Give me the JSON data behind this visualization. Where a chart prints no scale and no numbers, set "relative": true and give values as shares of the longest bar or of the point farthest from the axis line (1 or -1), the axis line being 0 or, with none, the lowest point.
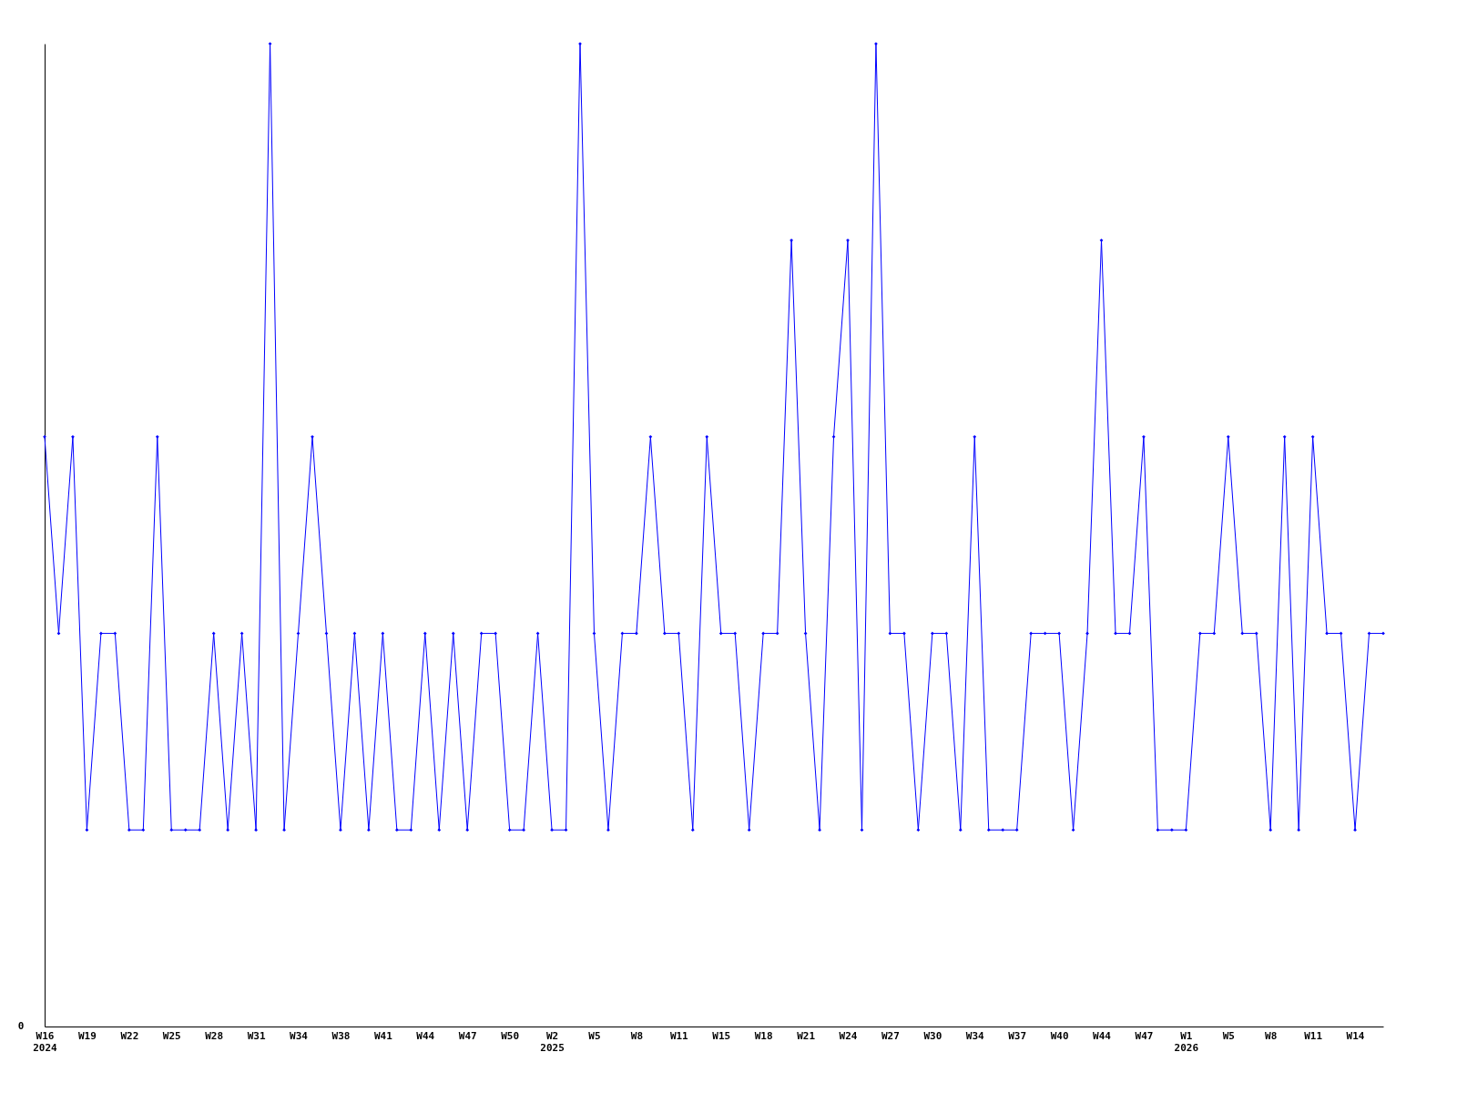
{
  "chart_data": {
    "type": "line",
    "relative": true,
    "marker": "diamond",
    "line_style": "solid",
    "annotations": [
      "0"
    ],
    "categories": [
      "W16\n2024",
      null,
      null,
      "W19",
      null,
      null,
      "W22",
      null,
      null,
      "W25",
      null,
      null,
      "W28",
      null,
      null,
      "W31",
      null,
      null,
      "W34",
      null,
      null,
      "W38",
      null,
      null,
      "W41",
      null,
      null,
      "W44",
      null,
      null,
      "W47",
      null,
      null,
      "W50",
      null,
      null,
      "W2\n2025",
      null,
      null,
      "W5",
      null,
      null,
      "W8",
      null,
      null,
      "W11",
      null,
      null,
      "W15",
      null,
      null,
      "W18",
      null,
      null,
      "W21",
      null,
      null,
      "W24",
      null,
      null,
      "W27",
      null,
      null,
      "W30",
      null,
      null,
      "W34",
      null,
      null,
      "W37",
      null,
      null,
      "W40",
      null,
      null,
      "W44",
      null,
      null,
      "W47",
      null,
      null,
      "W1\n2026",
      null,
      null,
      "W5",
      null,
      null,
      "W8",
      null,
      null,
      "W11",
      null,
      null,
      "W14",
      null,
      null
    ],
    "series": [
      {
        "color": "#0000ff",
        "values": [
          0.6,
          0.4,
          0.6,
          0.2,
          0.4,
          0.4,
          0.2,
          0.2,
          0.6,
          0.2,
          0.2,
          0.2,
          0.4,
          0.2,
          0.4,
          0.2,
          1,
          0.2,
          0.4,
          0.6,
          0.4,
          0.2,
          0.4,
          0.2,
          0.4,
          0.2,
          0.2,
          0.4,
          0.2,
          0.4,
          0.2,
          0.4,
          0.4,
          0.2,
          0.2,
          0.4,
          0.2,
          0.2,
          1,
          0.4,
          0.2,
          0.4,
          0.4,
          0.6,
          0.4,
          0.4,
          0.2,
          0.6,
          0.4,
          0.4,
          0.2,
          0.4,
          0.4,
          0.8,
          0.4,
          0.2,
          0.6,
          0.8,
          0.2,
          1,
          0.4,
          0.4,
          0.2,
          0.4,
          0.4,
          0.2,
          0.6,
          0.2,
          0.2,
          0.2,
          0.4,
          0.4,
          0.4,
          0.2,
          0.4,
          0.8,
          0.4,
          0.4,
          0.6,
          0.2,
          0.2,
          0.2,
          0.4,
          0.4,
          0.6,
          0.4,
          0.4,
          0.2,
          0.6,
          0.2,
          0.6,
          0.4,
          0.4,
          0.2,
          0.4,
          0.4
        ]
      }
    ]
  }
}
